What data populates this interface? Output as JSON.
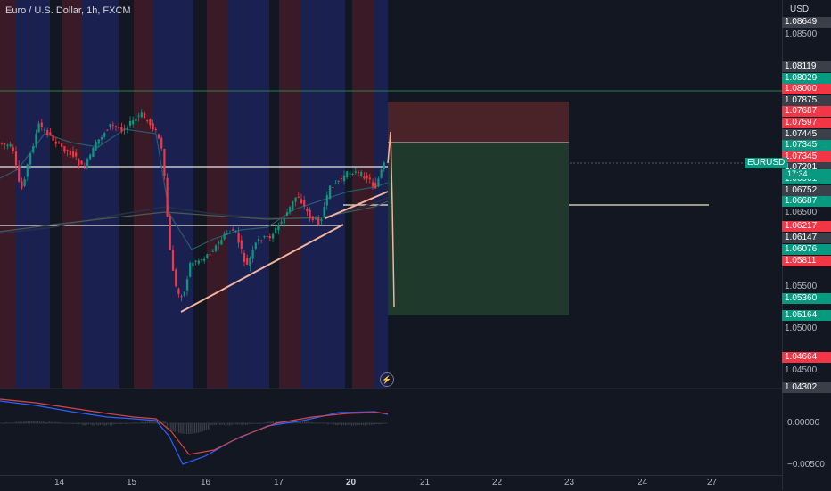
{
  "header": {
    "title": "Euro / U.S. Dollar, 1h, FXCM"
  },
  "price_scale": {
    "currency": "USD",
    "labels": [
      {
        "text": "1.08649",
        "style": "grey"
      },
      {
        "text": "1.08500",
        "style": "plain"
      },
      {
        "text": "1.08119",
        "style": "grey"
      },
      {
        "text": "1.08029",
        "style": "green"
      },
      {
        "text": "1.08000",
        "style": "red"
      },
      {
        "text": "1.07875",
        "style": "grey"
      },
      {
        "text": "1.07687",
        "style": "red"
      },
      {
        "text": "1.07597",
        "style": "red"
      },
      {
        "text": "1.07445",
        "style": "grey"
      },
      {
        "text": "1.07345",
        "style": "green"
      },
      {
        "text": "1.07345",
        "style": "red"
      },
      {
        "text": "1.07201",
        "style": "grey"
      },
      {
        "text": "1.06961",
        "style": "green"
      },
      {
        "text": "1.06752",
        "style": "grey"
      },
      {
        "text": "1.06687",
        "style": "green"
      },
      {
        "text": "1.06500",
        "style": "plain"
      },
      {
        "text": "1.06217",
        "style": "red"
      },
      {
        "text": "1.06147",
        "style": "grey"
      },
      {
        "text": "1.06076",
        "style": "green"
      },
      {
        "text": "1.05811",
        "style": "red"
      },
      {
        "text": "1.05500",
        "style": "plain"
      },
      {
        "text": "1.05360",
        "style": "green"
      },
      {
        "text": "1.05164",
        "style": "green"
      },
      {
        "text": "1.05000",
        "style": "plain"
      },
      {
        "text": "1.04664",
        "style": "red"
      },
      {
        "text": "1.04500",
        "style": "plain"
      },
      {
        "text": "1.04302",
        "style": "grey"
      }
    ]
  },
  "symbol_tag": "EURUSD",
  "countdown": "17:34",
  "time_axis": [
    "14",
    "15",
    "16",
    "17",
    "20",
    "21",
    "22",
    "23",
    "24",
    "27"
  ],
  "oscillator_scale": [
    "0.00000",
    "−0.00500"
  ],
  "colors": {
    "background": "#131722",
    "up": "#089981",
    "down": "#f23645",
    "session_red": "#3a1a26",
    "session_blue": "#1a2150",
    "target_zone": "#1f3a2d",
    "stop_zone": "#4a2328"
  }
}
